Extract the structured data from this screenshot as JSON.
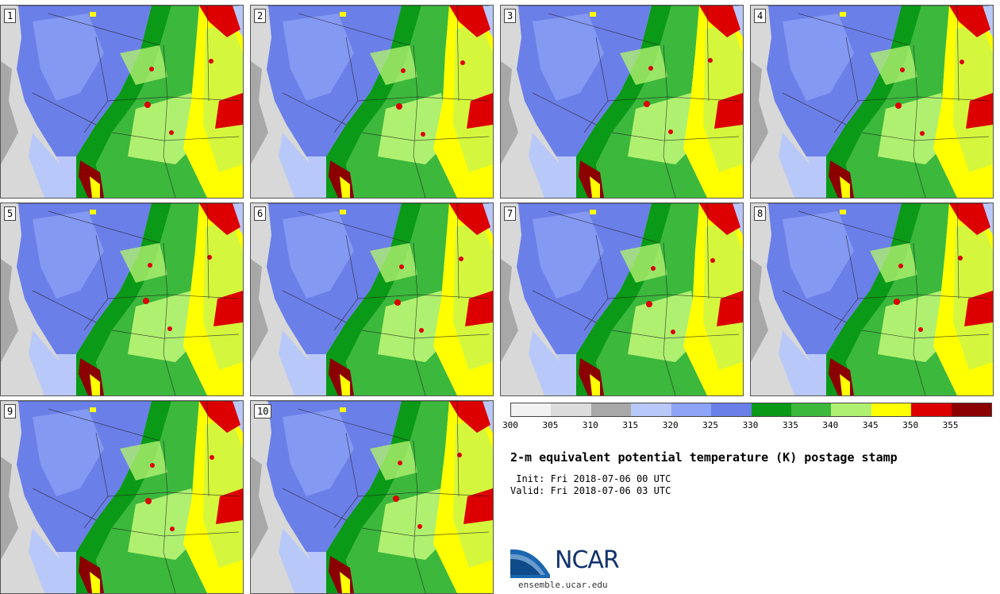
{
  "stamps": [
    {
      "label": "1"
    },
    {
      "label": "2"
    },
    {
      "label": "3"
    },
    {
      "label": "4"
    },
    {
      "label": "5"
    },
    {
      "label": "6"
    },
    {
      "label": "7"
    },
    {
      "label": "8"
    },
    {
      "label": "9"
    },
    {
      "label": "10"
    }
  ],
  "colorbar": {
    "colors": [
      "#f2f2f2",
      "#dcdcdc",
      "#a8a8a8",
      "#b8c8f8",
      "#8ea4f6",
      "#6b7fe8",
      "#0a9a17",
      "#3cb83c",
      "#b0f070",
      "#ffff00",
      "#dd0000",
      "#8b0000"
    ],
    "ticks": [
      "300",
      "305",
      "310",
      "315",
      "320",
      "325",
      "330",
      "335",
      "340",
      "345",
      "350",
      "355"
    ]
  },
  "title": "2-m equivalent potential temperature (K) postage stamp",
  "init": " Init: Fri 2018-07-06 00 UTC",
  "valid": "Valid: Fri 2018-07-06 03 UTC",
  "logo": {
    "text": "NCAR",
    "url": "ensemble.ucar.edu"
  }
}
